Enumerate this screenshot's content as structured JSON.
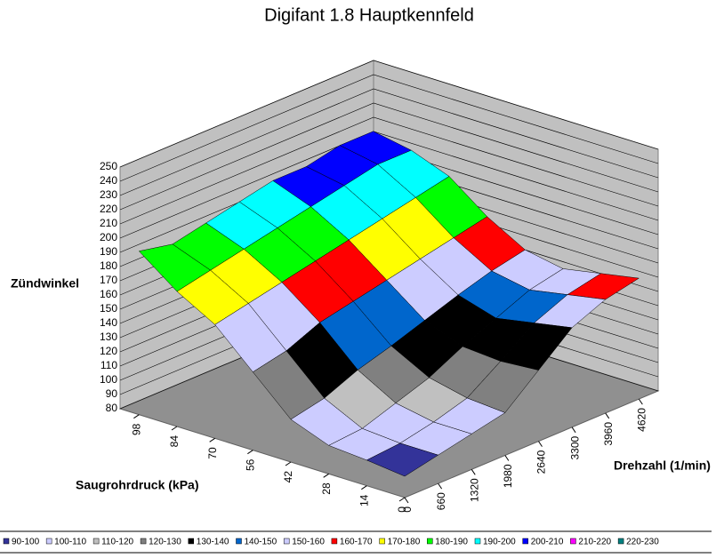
{
  "chart_data": {
    "type": "surface",
    "title": "Digifant 1.8 Hauptkennfeld",
    "z_label": "Zündwinkel",
    "x_label": "Drehzahl (1/min)",
    "y_label": "Saugrohrdruck (kPa)",
    "x": [
      0,
      660,
      1320,
      1980,
      2640,
      3300,
      3960,
      4620
    ],
    "y": [
      0,
      14,
      28,
      42,
      56,
      70,
      84,
      98
    ],
    "values": [
      [
        95,
        100,
        105,
        110,
        130,
        150,
        160,
        165
      ],
      [
        98,
        100,
        105,
        112,
        128,
        145,
        155,
        160
      ],
      [
        100,
        102,
        110,
        118,
        130,
        140,
        150,
        155
      ],
      [
        110,
        115,
        125,
        132,
        140,
        148,
        155,
        160
      ],
      [
        135,
        140,
        150,
        155,
        160,
        165,
        170,
        175
      ],
      [
        160,
        165,
        170,
        175,
        180,
        185,
        190,
        195
      ],
      [
        175,
        180,
        185,
        190,
        195,
        200,
        205,
        205
      ],
      [
        195,
        190,
        195,
        200,
        205,
        205,
        210,
        210
      ]
    ],
    "xlim": [
      0,
      5000
    ],
    "ylim": [
      0,
      105
    ],
    "zlim": [
      80,
      250
    ],
    "xticks": [
      0,
      660,
      1320,
      1980,
      2640,
      3300,
      3960,
      4620
    ],
    "yticks": [
      0,
      14,
      28,
      42,
      56,
      70,
      84,
      98
    ],
    "zticks": [
      80,
      90,
      100,
      110,
      120,
      130,
      140,
      150,
      160,
      170,
      180,
      190,
      200,
      210,
      220,
      230,
      240,
      250
    ],
    "bands": [
      {
        "label": "90-100",
        "color": "#333399"
      },
      {
        "label": "100-110",
        "color": "#ccccff"
      },
      {
        "label": "110-120",
        "color": "#c0c0c0"
      },
      {
        "label": "120-130",
        "color": "#808080"
      },
      {
        "label": "130-140",
        "color": "#000000"
      },
      {
        "label": "140-150",
        "color": "#0066cc"
      },
      {
        "label": "150-160",
        "color": "#ccccff"
      },
      {
        "label": "160-170",
        "color": "#ff0000"
      },
      {
        "label": "170-180",
        "color": "#ffff00"
      },
      {
        "label": "180-190",
        "color": "#00ff00"
      },
      {
        "label": "190-200",
        "color": "#00ffff"
      },
      {
        "label": "200-210",
        "color": "#0000ff"
      },
      {
        "label": "210-220",
        "color": "#ff00ff"
      },
      {
        "label": "220-230",
        "color": "#008080"
      }
    ]
  }
}
